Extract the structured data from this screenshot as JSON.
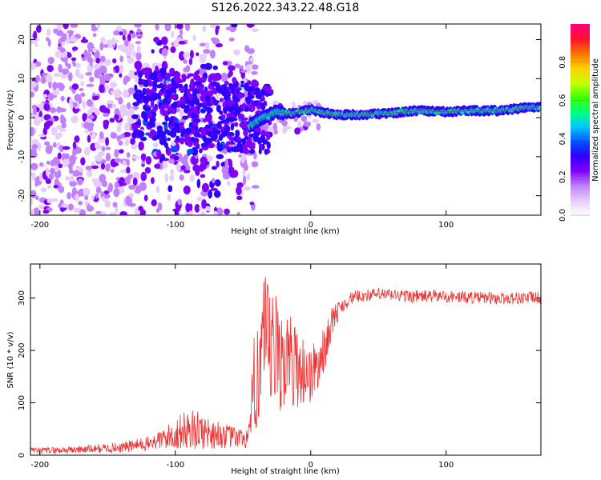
{
  "figure_title": "S126.2022.343.22.48.G18",
  "chart_data": [
    {
      "type": "heatmap",
      "title": "S126.2022.343.22.48.G18",
      "xlabel": "Height of straight line (km)",
      "ylabel": "Frequency (Hz)",
      "xlim": [
        -207,
        170
      ],
      "ylim": [
        -25,
        24
      ],
      "x_ticks": [
        -200,
        -100,
        0,
        100
      ],
      "y_ticks": [
        -20,
        -10,
        0,
        10,
        20
      ],
      "grid": false,
      "colorbar": {
        "label": "Normalized spectral amplitude",
        "range": [
          0,
          1
        ],
        "ticks": [
          0.0,
          0.2,
          0.4,
          0.6,
          0.8
        ],
        "colormap": [
          "#ffffff",
          "#e6ccff",
          "#c080ff",
          "#7f00ff",
          "#3000ff",
          "#0050ff",
          "#00c8ff",
          "#00ff80",
          "#40ff00",
          "#c8ff00",
          "#ffd000",
          "#ff7000",
          "#ff1030",
          "#ff0080"
        ]
      },
      "ridge": {
        "x": [
          -45,
          -35,
          -25,
          -15,
          0,
          10,
          20,
          40,
          60,
          80,
          100,
          120,
          140,
          160,
          170
        ],
        "frequency": [
          -2,
          0,
          1.5,
          1,
          2,
          1.2,
          0.8,
          0.8,
          1.2,
          1.8,
          1.5,
          1.8,
          1.8,
          2.6,
          2.6
        ]
      },
      "annotations": []
    },
    {
      "type": "line",
      "xlabel": "Height of straight line (km)",
      "ylabel": "SNR (10 * v/v)",
      "xlim": [
        -207,
        170
      ],
      "ylim": [
        0,
        365
      ],
      "x_ticks": [
        -200,
        -100,
        0,
        100
      ],
      "y_ticks": [
        0,
        100,
        200,
        300
      ],
      "grid": false,
      "series": [
        {
          "color": "#ef3232",
          "x": [
            -207,
            -180,
            -160,
            -140,
            -120,
            -110,
            -100,
            -90,
            -80,
            -70,
            -60,
            -50,
            -45,
            -40,
            -35,
            -30,
            -25,
            -20,
            -15,
            -10,
            -5,
            0,
            5,
            10,
            15,
            20,
            25,
            30,
            35,
            40,
            50,
            60,
            70,
            80,
            90,
            100,
            110,
            120,
            130,
            140,
            150,
            160,
            170
          ],
          "value": [
            8,
            10,
            12,
            15,
            22,
            30,
            40,
            50,
            45,
            40,
            35,
            32,
            35,
            180,
            200,
            195,
            190,
            185,
            180,
            170,
            160,
            155,
            170,
            200,
            250,
            275,
            290,
            300,
            303,
            305,
            307,
            306,
            304,
            303,
            304,
            303,
            302,
            301,
            300,
            299,
            300,
            301,
            300
          ],
          "noise": [
            6,
            7,
            8,
            10,
            14,
            20,
            30,
            40,
            35,
            28,
            22,
            18,
            30,
            140,
            150,
            130,
            120,
            100,
            90,
            80,
            70,
            60,
            50,
            45,
            30,
            20,
            15,
            12,
            12,
            12,
            12,
            12,
            12,
            12,
            12,
            12,
            12,
            12,
            12,
            12,
            12,
            12,
            12
          ]
        }
      ],
      "annotations": []
    }
  ]
}
